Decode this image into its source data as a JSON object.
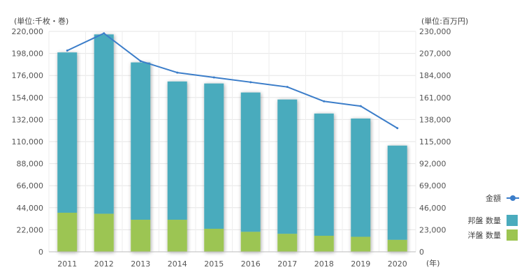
{
  "chart_data": {
    "type": "bar",
    "categories": [
      "2011",
      "2012",
      "2013",
      "2014",
      "2015",
      "2016",
      "2017",
      "2018",
      "2019",
      "2020"
    ],
    "series": [
      {
        "name": "邦盤 数量",
        "kind": "stacked-bar",
        "axis": "left",
        "color": "#4aabbd",
        "values": [
          160000,
          179000,
          157000,
          138000,
          145000,
          139000,
          134000,
          122000,
          118000,
          94000
        ]
      },
      {
        "name": "洋盤 数量",
        "kind": "stacked-bar",
        "axis": "left",
        "color": "#9cc552",
        "values": [
          39000,
          38000,
          32000,
          32000,
          23000,
          20000,
          18000,
          16000,
          15000,
          12000
        ]
      },
      {
        "name": "金額",
        "kind": "line",
        "axis": "right",
        "color": "#3b7dc9",
        "values": [
          210000,
          228000,
          199000,
          187000,
          182000,
          177000,
          172000,
          157000,
          152000,
          129000
        ]
      }
    ],
    "y_left": {
      "unit": "(単位:千枚・巻)",
      "min": 0,
      "max": 220000,
      "ticks": [
        "0",
        "22,000",
        "44,000",
        "66,000",
        "88,000",
        "110,000",
        "132,000",
        "154,000",
        "176,000",
        "198,000",
        "220,000"
      ]
    },
    "y_right": {
      "unit": "(単位:百万円)",
      "min": 0,
      "max": 230000,
      "ticks": [
        "0",
        "23,000",
        "46,000",
        "69,000",
        "92,000",
        "115,000",
        "138,000",
        "161,000",
        "184,000",
        "207,000",
        "230,000"
      ]
    },
    "x_unit": "(年)",
    "grid": true,
    "legend_position": "right"
  }
}
